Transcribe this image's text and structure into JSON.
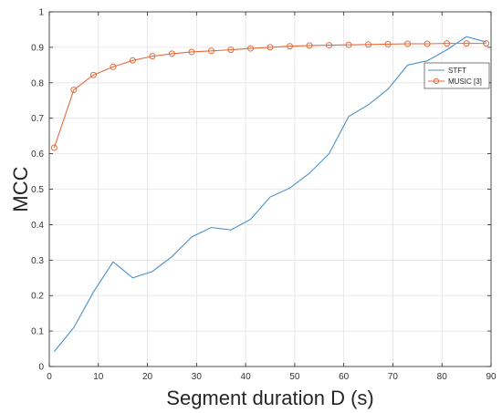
{
  "chart_data": {
    "type": "line",
    "xlabel": "Segment duration D (s)",
    "ylabel": "MCC",
    "xlim": [
      0,
      90
    ],
    "ylim": [
      0,
      1
    ],
    "grid": true,
    "legend_position": "top-right",
    "x_ticks": [
      "0",
      "10",
      "20",
      "30",
      "40",
      "50",
      "60",
      "70",
      "80",
      "90"
    ],
    "y_ticks": [
      "0",
      "0.1",
      "0.2",
      "0.3",
      "0.4",
      "0.5",
      "0.6",
      "0.7",
      "0.8",
      "0.9",
      "1"
    ],
    "x": [
      1,
      5,
      9,
      13,
      17,
      21,
      25,
      29,
      33,
      37,
      41,
      45,
      49,
      53,
      57,
      61,
      65,
      69,
      73,
      77,
      81,
      85,
      89
    ],
    "series": [
      {
        "name": "STFT",
        "color": "#4a90c8",
        "marker": "none",
        "values": [
          0.042,
          0.11,
          0.21,
          0.295,
          0.25,
          0.268,
          0.31,
          0.365,
          0.392,
          0.385,
          0.415,
          0.478,
          0.503,
          0.545,
          0.6,
          0.705,
          0.738,
          0.782,
          0.85,
          0.862,
          0.893,
          0.93,
          0.915
        ]
      },
      {
        "name": "MUSIC [3]",
        "color": "#e36b3c",
        "marker": "circle",
        "values": [
          0.617,
          0.78,
          0.822,
          0.845,
          0.863,
          0.875,
          0.882,
          0.887,
          0.89,
          0.893,
          0.897,
          0.9,
          0.903,
          0.905,
          0.906,
          0.907,
          0.908,
          0.909,
          0.91,
          0.91,
          0.911,
          0.911,
          0.911
        ]
      }
    ]
  }
}
